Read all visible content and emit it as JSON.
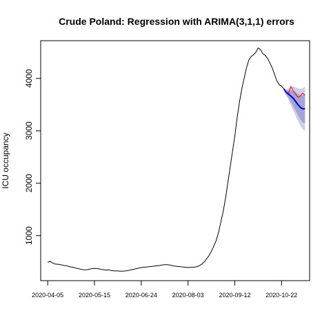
{
  "chart_data": {
    "type": "line",
    "title": "Crude Poland: Regression with ARIMA(3,1,1) errors",
    "xlabel": "",
    "ylabel": "ICU occupancy",
    "x_type": "date",
    "xlim": [
      "2020-03-30",
      "2020-11-15"
    ],
    "ylim": [
      140,
      4720
    ],
    "x_ticks": [
      "2020-04-05",
      "2020-05-15",
      "2020-06-24",
      "2020-08-03",
      "2020-09-12",
      "2020-10-22"
    ],
    "y_ticks": [
      1000,
      2000,
      3000,
      4000
    ],
    "grid": false,
    "legend": "none",
    "colors": {
      "observed": "#000000",
      "actual_test": "#ff0000",
      "forecast": "#0000cd",
      "interval_80": "#a4a4d6",
      "interval_95": "#cfcfe6"
    },
    "series": [
      {
        "role": "observed",
        "points": [
          [
            "2020-04-05",
            490
          ],
          [
            "2020-04-07",
            510
          ],
          [
            "2020-04-09",
            480
          ],
          [
            "2020-04-11",
            460
          ],
          [
            "2020-04-13",
            455
          ],
          [
            "2020-04-15",
            450
          ],
          [
            "2020-04-17",
            440
          ],
          [
            "2020-04-19",
            430
          ],
          [
            "2020-04-21",
            425
          ],
          [
            "2020-04-23",
            410
          ],
          [
            "2020-04-25",
            400
          ],
          [
            "2020-04-27",
            395
          ],
          [
            "2020-04-29",
            380
          ],
          [
            "2020-05-01",
            370
          ],
          [
            "2020-05-03",
            360
          ],
          [
            "2020-05-05",
            350
          ],
          [
            "2020-05-07",
            345
          ],
          [
            "2020-05-09",
            350
          ],
          [
            "2020-05-11",
            360
          ],
          [
            "2020-05-13",
            370
          ],
          [
            "2020-05-15",
            375
          ],
          [
            "2020-05-17",
            370
          ],
          [
            "2020-05-19",
            365
          ],
          [
            "2020-05-21",
            355
          ],
          [
            "2020-05-23",
            350
          ],
          [
            "2020-05-25",
            340
          ],
          [
            "2020-05-27",
            345
          ],
          [
            "2020-05-29",
            335
          ],
          [
            "2020-05-31",
            330
          ],
          [
            "2020-06-02",
            325
          ],
          [
            "2020-06-04",
            325
          ],
          [
            "2020-06-06",
            320
          ],
          [
            "2020-06-08",
            320
          ],
          [
            "2020-06-10",
            325
          ],
          [
            "2020-06-12",
            330
          ],
          [
            "2020-06-14",
            340
          ],
          [
            "2020-06-16",
            350
          ],
          [
            "2020-06-18",
            360
          ],
          [
            "2020-06-20",
            370
          ],
          [
            "2020-06-22",
            380
          ],
          [
            "2020-06-24",
            390
          ],
          [
            "2020-06-26",
            395
          ],
          [
            "2020-06-28",
            400
          ],
          [
            "2020-06-30",
            405
          ],
          [
            "2020-07-02",
            410
          ],
          [
            "2020-07-04",
            415
          ],
          [
            "2020-07-06",
            420
          ],
          [
            "2020-07-08",
            425
          ],
          [
            "2020-07-10",
            430
          ],
          [
            "2020-07-12",
            440
          ],
          [
            "2020-07-14",
            445
          ],
          [
            "2020-07-16",
            445
          ],
          [
            "2020-07-18",
            440
          ],
          [
            "2020-07-20",
            430
          ],
          [
            "2020-07-22",
            420
          ],
          [
            "2020-07-24",
            415
          ],
          [
            "2020-07-26",
            410
          ],
          [
            "2020-07-28",
            405
          ],
          [
            "2020-07-30",
            400
          ],
          [
            "2020-08-01",
            395
          ],
          [
            "2020-08-03",
            390
          ],
          [
            "2020-08-05",
            395
          ],
          [
            "2020-08-07",
            395
          ],
          [
            "2020-08-09",
            400
          ],
          [
            "2020-08-11",
            410
          ],
          [
            "2020-08-13",
            430
          ],
          [
            "2020-08-15",
            460
          ],
          [
            "2020-08-17",
            500
          ],
          [
            "2020-08-19",
            560
          ],
          [
            "2020-08-21",
            620
          ],
          [
            "2020-08-23",
            700
          ],
          [
            "2020-08-25",
            800
          ],
          [
            "2020-08-27",
            900
          ],
          [
            "2020-08-29",
            1050
          ],
          [
            "2020-08-31",
            1250
          ],
          [
            "2020-09-02",
            1450
          ],
          [
            "2020-09-04",
            1700
          ],
          [
            "2020-09-06",
            2000
          ],
          [
            "2020-09-08",
            2300
          ],
          [
            "2020-09-10",
            2600
          ],
          [
            "2020-09-12",
            2900
          ],
          [
            "2020-09-14",
            3250
          ],
          [
            "2020-09-16",
            3550
          ],
          [
            "2020-09-18",
            3800
          ],
          [
            "2020-09-20",
            4000
          ],
          [
            "2020-09-22",
            4200
          ],
          [
            "2020-09-24",
            4350
          ],
          [
            "2020-09-26",
            4420
          ],
          [
            "2020-09-28",
            4450
          ],
          [
            "2020-09-30",
            4500
          ],
          [
            "2020-10-02",
            4580
          ],
          [
            "2020-10-04",
            4550
          ],
          [
            "2020-10-06",
            4470
          ],
          [
            "2020-10-08",
            4440
          ],
          [
            "2020-10-10",
            4380
          ],
          [
            "2020-10-12",
            4300
          ],
          [
            "2020-10-14",
            4200
          ],
          [
            "2020-10-16",
            4080
          ],
          [
            "2020-10-18",
            3950
          ],
          [
            "2020-10-20",
            3880
          ],
          [
            "2020-10-22",
            3850
          ],
          [
            "2020-10-24",
            3800
          ]
        ]
      },
      {
        "role": "actual_test",
        "points": [
          [
            "2020-10-24",
            3800
          ],
          [
            "2020-10-26",
            3730
          ],
          [
            "2020-10-28",
            3720
          ],
          [
            "2020-10-30",
            3850
          ],
          [
            "2020-11-01",
            3760
          ],
          [
            "2020-11-03",
            3700
          ],
          [
            "2020-11-05",
            3640
          ],
          [
            "2020-11-07",
            3660
          ],
          [
            "2020-11-09",
            3720
          ],
          [
            "2020-11-11",
            3680
          ]
        ]
      },
      {
        "role": "forecast",
        "points": [
          [
            "2020-10-24",
            3800
          ],
          [
            "2020-10-26",
            3730
          ],
          [
            "2020-10-28",
            3700
          ],
          [
            "2020-10-30",
            3660
          ],
          [
            "2020-11-01",
            3620
          ],
          [
            "2020-11-03",
            3560
          ],
          [
            "2020-11-05",
            3500
          ],
          [
            "2020-11-07",
            3450
          ],
          [
            "2020-11-09",
            3420
          ],
          [
            "2020-11-11",
            3420
          ]
        ],
        "lower_80": [
          3800,
          3690,
          3630,
          3550,
          3470,
          3380,
          3300,
          3220,
          3160,
          3140
        ],
        "upper_80": [
          3800,
          3770,
          3770,
          3770,
          3770,
          3740,
          3700,
          3680,
          3680,
          3700
        ],
        "lower_95": [
          3800,
          3670,
          3590,
          3490,
          3390,
          3290,
          3190,
          3100,
          3030,
          3000
        ],
        "upper_95": [
          3800,
          3790,
          3810,
          3830,
          3850,
          3830,
          3810,
          3800,
          3810,
          3840
        ]
      }
    ]
  }
}
